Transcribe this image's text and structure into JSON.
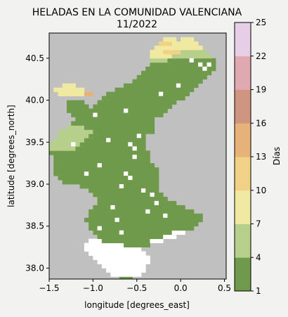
{
  "chart_data": {
    "type": "heatmap",
    "title": "HELADAS EN LA COMUNIDAD VALENCIANA",
    "subtitle": "11/2022",
    "xlabel": "longitude [degrees_east]",
    "ylabel": "latitude [degrees_north]",
    "xlim": [
      -1.5,
      0.52
    ],
    "ylim": [
      37.87,
      40.8
    ],
    "x_ticks": [
      -1.5,
      -1.0,
      -0.5,
      0.0,
      0.5
    ],
    "x_tick_labels": [
      "−1.5",
      "−1.0",
      "−0.5",
      "0.0",
      "0.5"
    ],
    "y_ticks": [
      38.0,
      38.5,
      39.0,
      39.5,
      40.0,
      40.5
    ],
    "y_tick_labels": [
      "38.0",
      "38.5",
      "39.0",
      "39.5",
      "40.0",
      "40.5"
    ],
    "colorbar": {
      "label": "Días",
      "levels": [
        1,
        4,
        7,
        10,
        13,
        16,
        19,
        22,
        25
      ],
      "tick_labels": [
        "1",
        "4",
        "7",
        "10",
        "13",
        "16",
        "19",
        "22",
        "25"
      ],
      "colors": [
        "#6f9a4c",
        "#b6d08b",
        "#efe9a2",
        "#f0d185",
        "#e6b27a",
        "#cf9580",
        "#e0a8b0",
        "#e6cfe6"
      ]
    },
    "background_color": "#c0c0c0",
    "cell_size_deg": 0.05,
    "grid_origin": {
      "lon": -1.5,
      "lat": 37.85
    },
    "rows": [
      {
        "lat": 37.875,
        "cells": [
          [
            -0.675,
            -0.575,
            1
          ]
        ]
      },
      {
        "lat": 37.925,
        "cells": [
          [
            -0.775,
            -0.475,
            0
          ]
        ]
      },
      {
        "lat": 37.975,
        "cells": [
          [
            -0.825,
            -0.425,
            0
          ]
        ]
      },
      {
        "lat": 38.025,
        "cells": [
          [
            -0.875,
            -0.425,
            0
          ]
        ]
      },
      {
        "lat": 38.075,
        "cells": [
          [
            -0.925,
            -0.375,
            0
          ]
        ]
      },
      {
        "lat": 38.125,
        "cells": [
          [
            -0.975,
            -0.375,
            0
          ]
        ]
      },
      {
        "lat": 38.175,
        "cells": [
          [
            -1.025,
            -0.425,
            0
          ]
        ]
      },
      {
        "lat": 38.225,
        "cells": [
          [
            -1.075,
            -0.475,
            0
          ]
        ]
      },
      {
        "lat": 38.275,
        "cells": [
          [
            -1.075,
            -0.625,
            0
          ],
          [
            -0.625,
            -0.375,
            1
          ]
        ]
      },
      {
        "lat": 38.325,
        "cells": [
          [
            -1.025,
            -0.875,
            0
          ],
          [
            -0.875,
            -0.325,
            1
          ],
          [
            -0.325,
            -0.225,
            0
          ]
        ]
      },
      {
        "lat": 38.375,
        "cells": [
          [
            -0.925,
            -0.725,
            1
          ],
          [
            -0.725,
            -0.175,
            1
          ],
          [
            -0.175,
            -0.075,
            0
          ]
        ]
      },
      {
        "lat": 38.425,
        "cells": [
          [
            -0.975,
            -0.075,
            1
          ],
          [
            -0.075,
            0.025,
            0
          ]
        ]
      },
      {
        "lat": 38.475,
        "cells": [
          [
            -1.025,
            0.125,
            1
          ]
        ]
      },
      {
        "lat": 38.525,
        "cells": [
          [
            -1.025,
            0.175,
            1
          ]
        ]
      },
      {
        "lat": 38.575,
        "cells": [
          [
            -1.075,
            0.225,
            1
          ]
        ]
      },
      {
        "lat": 38.625,
        "cells": [
          [
            -1.025,
            0.225,
            1
          ]
        ]
      },
      {
        "lat": 38.675,
        "cells": [
          [
            -1.025,
            0.125,
            1
          ]
        ]
      },
      {
        "lat": 38.725,
        "cells": [
          [
            -0.975,
            0.025,
            1
          ]
        ]
      },
      {
        "lat": 38.775,
        "cells": [
          [
            -0.925,
            -0.075,
            1
          ]
        ]
      },
      {
        "lat": 38.825,
        "cells": [
          [
            -0.925,
            -0.175,
            1
          ]
        ]
      },
      {
        "lat": 38.875,
        "cells": [
          [
            -0.975,
            -0.225,
            1
          ]
        ]
      },
      {
        "lat": 38.925,
        "cells": [
          [
            -1.025,
            -0.275,
            1
          ]
        ]
      },
      {
        "lat": 38.975,
        "cells": [
          [
            -1.125,
            -0.275,
            1
          ]
        ]
      },
      {
        "lat": 39.025,
        "cells": [
          [
            -1.325,
            -0.275,
            1
          ]
        ]
      },
      {
        "lat": 39.075,
        "cells": [
          [
            -1.375,
            -0.275,
            1
          ]
        ]
      },
      {
        "lat": 39.125,
        "cells": [
          [
            -1.425,
            -0.275,
            1
          ]
        ]
      },
      {
        "lat": 39.175,
        "cells": [
          [
            -1.425,
            -0.275,
            1
          ]
        ]
      },
      {
        "lat": 39.225,
        "cells": [
          [
            -1.425,
            -0.325,
            1
          ]
        ]
      },
      {
        "lat": 39.275,
        "cells": [
          [
            -1.425,
            -0.375,
            1
          ]
        ]
      },
      {
        "lat": 39.325,
        "cells": [
          [
            -1.425,
            -0.375,
            1
          ]
        ]
      },
      {
        "lat": 39.375,
        "cells": [
          [
            -1.475,
            -1.075,
            1
          ],
          [
            -1.075,
            -0.375,
            1
          ]
        ]
      },
      {
        "lat": 39.425,
        "cells": [
          [
            -1.475,
            -1.175,
            4
          ],
          [
            -1.175,
            -0.425,
            1
          ]
        ]
      },
      {
        "lat": 39.475,
        "cells": [
          [
            -1.475,
            -1.125,
            4
          ],
          [
            -1.125,
            -0.425,
            1
          ]
        ]
      },
      {
        "lat": 39.525,
        "cells": [
          [
            -1.425,
            -1.075,
            4
          ],
          [
            -1.075,
            -0.425,
            1
          ]
        ]
      },
      {
        "lat": 39.575,
        "cells": [
          [
            -1.375,
            -1.025,
            4
          ],
          [
            -1.025,
            -0.425,
            1
          ]
        ]
      },
      {
        "lat": 39.625,
        "cells": [
          [
            -1.375,
            -0.975,
            4
          ],
          [
            -0.975,
            -0.325,
            1
          ]
        ]
      },
      {
        "lat": 39.675,
        "cells": [
          [
            -1.275,
            -1.075,
            4
          ],
          [
            -1.075,
            -0.325,
            1
          ]
        ]
      },
      {
        "lat": 39.725,
        "cells": [
          [
            -1.225,
            -0.325,
            1
          ]
        ]
      },
      {
        "lat": 39.775,
        "cells": [
          [
            -1.175,
            -0.325,
            1
          ]
        ]
      },
      {
        "lat": 39.825,
        "cells": [
          [
            -1.225,
            -0.225,
            1
          ]
        ]
      },
      {
        "lat": 39.875,
        "cells": [
          [
            -1.275,
            -1.025,
            1
          ],
          [
            -1.025,
            -0.175,
            1
          ]
        ]
      },
      {
        "lat": 39.925,
        "cells": [
          [
            -1.275,
            -1.075,
            1
          ],
          [
            -0.975,
            -0.125,
            1
          ]
        ]
      },
      {
        "lat": 39.975,
        "cells": [
          [
            -1.275,
            -1.125,
            1
          ],
          [
            -0.925,
            -0.075,
            1
          ]
        ]
      },
      {
        "lat": 40.025,
        "cells": [
          [
            -0.875,
            0.025,
            1
          ]
        ]
      },
      {
        "lat": 40.075,
        "cells": [
          [
            -1.375,
            -1.075,
            7
          ],
          [
            -1.075,
            -1.025,
            13
          ],
          [
            -0.825,
            0.075,
            1
          ]
        ]
      },
      {
        "lat": 40.125,
        "cells": [
          [
            -1.425,
            -1.125,
            7
          ],
          [
            -0.725,
            0.125,
            1
          ]
        ]
      },
      {
        "lat": 40.175,
        "cells": [
          [
            -1.325,
            -1.225,
            7
          ],
          [
            -0.625,
            0.175,
            1
          ]
        ]
      },
      {
        "lat": 40.225,
        "cells": [
          [
            -0.525,
            0.225,
            1
          ]
        ]
      },
      {
        "lat": 40.275,
        "cells": [
          [
            -0.475,
            0.275,
            1
          ]
        ]
      },
      {
        "lat": 40.325,
        "cells": [
          [
            -0.425,
            0.325,
            1
          ]
        ]
      },
      {
        "lat": 40.375,
        "cells": [
          [
            -0.375,
            0.375,
            1
          ]
        ]
      },
      {
        "lat": 40.425,
        "cells": [
          [
            -0.325,
            0.375,
            1
          ]
        ]
      },
      {
        "lat": 40.475,
        "cells": [
          [
            -0.325,
            -0.125,
            4
          ],
          [
            -0.125,
            0.375,
            1
          ]
        ]
      },
      {
        "lat": 40.525,
        "cells": [
          [
            -0.325,
            -0.075,
            7
          ],
          [
            -0.075,
            0.325,
            4
          ]
        ]
      },
      {
        "lat": 40.575,
        "cells": [
          [
            -0.325,
            -0.175,
            7
          ],
          [
            -0.175,
            0.025,
            10
          ],
          [
            0.025,
            0.275,
            4
          ]
        ]
      },
      {
        "lat": 40.625,
        "cells": [
          [
            -0.275,
            -0.125,
            7
          ],
          [
            -0.125,
            0.225,
            7
          ]
        ]
      },
      {
        "lat": 40.675,
        "cells": [
          [
            -0.225,
            -0.075,
            10
          ],
          [
            -0.075,
            0.175,
            7
          ]
        ]
      },
      {
        "lat": 40.725,
        "cells": [
          [
            -0.175,
            -0.075,
            7
          ],
          [
            0.025,
            0.125,
            7
          ]
        ]
      }
    ],
    "gaps": [
      [
        -0.525,
        39.325,
        0
      ],
      [
        -0.575,
        39.475,
        0
      ],
      [
        -0.525,
        39.425,
        0
      ],
      [
        -0.475,
        39.575,
        0
      ],
      [
        -0.625,
        39.125,
        0
      ],
      [
        -0.575,
        39.075,
        0
      ],
      [
        -0.925,
        39.225,
        0
      ],
      [
        -0.675,
        38.975,
        0
      ],
      [
        -0.425,
        38.925,
        0
      ],
      [
        -0.325,
        38.875,
        0
      ],
      [
        -0.775,
        38.725,
        0
      ],
      [
        -0.375,
        38.675,
        0
      ],
      [
        -0.175,
        38.625,
        0
      ],
      [
        -0.925,
        38.475,
        0
      ],
      [
        -0.675,
        38.425,
        0
      ],
      [
        -1.075,
        39.125,
        0
      ],
      [
        -1.225,
        39.475,
        0
      ],
      [
        -0.825,
        39.525,
        0
      ],
      [
        0.125,
        40.475,
        0
      ],
      [
        0.225,
        40.425,
        0
      ],
      [
        0.275,
        40.375,
        0
      ],
      [
        0.325,
        40.425,
        0
      ],
      [
        -0.725,
        38.575,
        0
      ],
      [
        -0.275,
        38.775,
        0
      ],
      [
        -0.975,
        39.825,
        0
      ],
      [
        -0.625,
        39.875,
        0
      ],
      [
        -0.225,
        40.075,
        0
      ],
      [
        -0.025,
        40.175,
        0
      ]
    ]
  }
}
